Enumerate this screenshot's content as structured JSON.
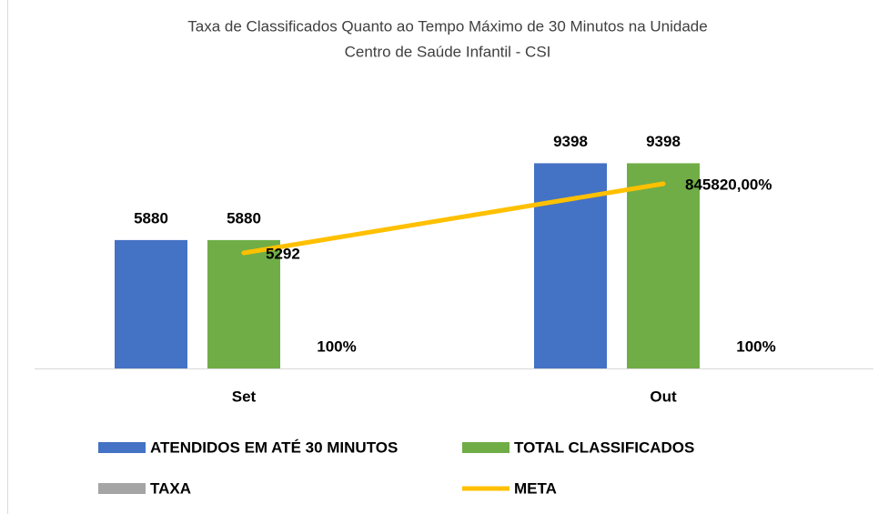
{
  "chart_data": {
    "type": "bar",
    "title": [
      "Taxa de Classificados Quanto ao Tempo Máximo de 30 Minutos na Unidade",
      "Centro de Saúde Infantil - CSI"
    ],
    "categories": [
      "Set",
      "Out"
    ],
    "series": [
      {
        "name": "ATENDIDOS EM ATÉ 30 MINUTOS",
        "color": "#4472c4",
        "values": [
          5880,
          9398
        ]
      },
      {
        "name": "TOTAL CLASSIFICADOS",
        "color": "#70ad47",
        "values": [
          5880,
          9398
        ]
      },
      {
        "name": "TAXA",
        "color": "#a5a5a5",
        "values": [
          1,
          1
        ],
        "value_labels": [
          "100%",
          "100%"
        ]
      },
      {
        "name": "META",
        "type": "line",
        "color": "#ffc000",
        "values": [
          5292,
          8458.2
        ],
        "value_labels": [
          "5292",
          "845820,00%"
        ]
      }
    ],
    "ylim": [
      0,
      12000
    ]
  }
}
